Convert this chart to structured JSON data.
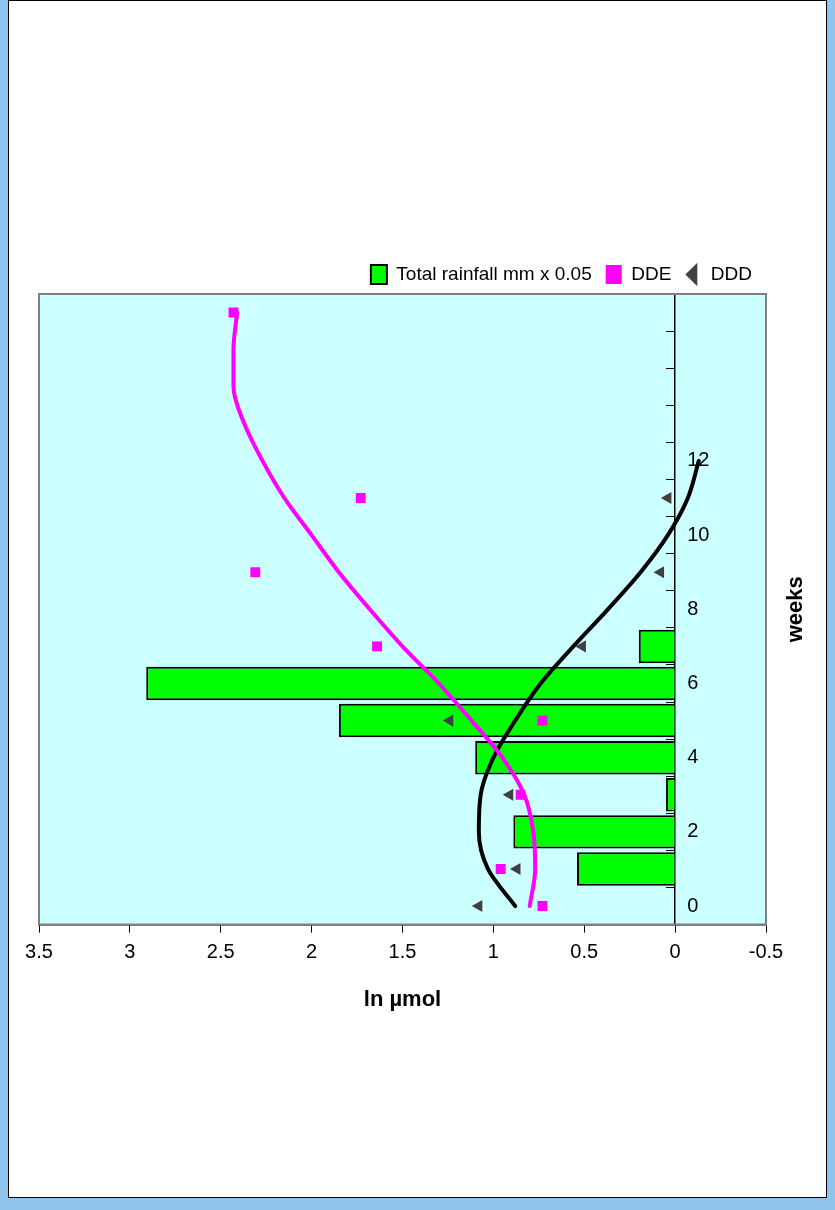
{
  "chart_data": {
    "type": "bar",
    "orientation": "horizontal",
    "xlabel": "ln µmol",
    "ylabel": "weeks",
    "categories": [
      null,
      null,
      null,
      null,
      "12",
      null,
      "10",
      null,
      "8",
      null,
      "6",
      null,
      "4",
      null,
      "2",
      null,
      "0"
    ],
    "series": [
      {
        "name": "Total rainfall mm x 0.05",
        "color": "#00ff00",
        "values": [
          null,
          null,
          null,
          null,
          null,
          null,
          null,
          null,
          null,
          0.2,
          2.91,
          1.85,
          1.1,
          0.05,
          0.89,
          0.54,
          null
        ]
      },
      {
        "name": "DDE",
        "type": "scatter",
        "marker": "square",
        "color": "#ff00ff",
        "values": [
          2.43,
          null,
          null,
          null,
          null,
          1.73,
          null,
          2.31,
          null,
          1.64,
          null,
          0.73,
          null,
          0.85,
          null,
          0.96,
          0.73
        ]
      },
      {
        "name": "DDD",
        "type": "scatter",
        "marker": "triangle",
        "color": "#404040",
        "values": [
          null,
          null,
          null,
          null,
          null,
          0.04,
          null,
          0.08,
          null,
          0.51,
          null,
          1.24,
          null,
          0.91,
          null,
          0.87,
          1.08
        ]
      },
      {
        "type": "line",
        "marker": "none",
        "color": "#ff00ff",
        "values": [
          2.41,
          2.43,
          2.43,
          2.37,
          2.27,
          2.15,
          2.0,
          1.85,
          1.68,
          1.5,
          1.3,
          1.12,
          0.95,
          0.83,
          0.78,
          0.77,
          0.8
        ]
      },
      {
        "type": "line",
        "marker": "none",
        "color": "#000000",
        "values": [
          null,
          null,
          null,
          null,
          -0.13,
          -0.07,
          0.04,
          0.19,
          0.37,
          0.56,
          0.74,
          0.88,
          1.0,
          1.07,
          1.08,
          1.03,
          0.88
        ]
      }
    ],
    "xlim": [
      3.5,
      -0.5
    ],
    "xticks": [
      3.5,
      3,
      2.5,
      2,
      1.5,
      1,
      0.5,
      0,
      -0.5
    ],
    "grid": false,
    "legend": "top right"
  }
}
